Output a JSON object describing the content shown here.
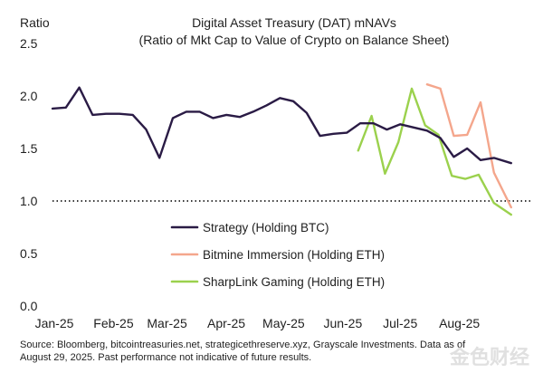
{
  "chart_data": {
    "type": "line",
    "title": "Digital Asset Treasury (DAT) mNAVs",
    "subtitle": "(Ratio of Mkt Cap to Value of Crypto on Balance Sheet)",
    "ylabel": "Ratio",
    "xlabel": "",
    "ylim": [
      0.0,
      2.5
    ],
    "yticks": [
      "0.0",
      "0.5",
      "1.0",
      "1.5",
      "2.0",
      "2.5"
    ],
    "ytick_values": [
      0.0,
      0.5,
      1.0,
      1.5,
      2.0,
      2.5
    ],
    "xlim": [
      "2025-01-01",
      "2025-09-09"
    ],
    "xticks": [
      "Jan-25",
      "Feb-25",
      "Mar-25",
      "Apr-25",
      "May-25",
      "Jun-25",
      "Jul-25",
      "Aug-25"
    ],
    "xtick_dates": [
      "2025-01-01",
      "2025-02-01",
      "2025-03-01",
      "2025-04-01",
      "2025-05-01",
      "2025-06-01",
      "2025-07-01",
      "2025-08-01"
    ],
    "grid": false,
    "reference_line": {
      "y": 1.0,
      "style": "dotted"
    },
    "legend_position": "lower-left inside plot",
    "series": [
      {
        "name": "Strategy (Holding BTC)",
        "color": "#2a1b45",
        "points": [
          [
            "2025-01-01",
            1.88
          ],
          [
            "2025-01-08",
            1.89
          ],
          [
            "2025-01-15",
            2.08
          ],
          [
            "2025-01-22",
            1.82
          ],
          [
            "2025-01-29",
            1.83
          ],
          [
            "2025-02-05",
            1.83
          ],
          [
            "2025-02-12",
            1.82
          ],
          [
            "2025-02-19",
            1.68
          ],
          [
            "2025-02-26",
            1.41
          ],
          [
            "2025-03-05",
            1.79
          ],
          [
            "2025-03-12",
            1.85
          ],
          [
            "2025-03-19",
            1.85
          ],
          [
            "2025-03-26",
            1.79
          ],
          [
            "2025-04-02",
            1.82
          ],
          [
            "2025-04-09",
            1.8
          ],
          [
            "2025-04-16",
            1.85
          ],
          [
            "2025-04-23",
            1.91
          ],
          [
            "2025-04-30",
            1.98
          ],
          [
            "2025-05-07",
            1.95
          ],
          [
            "2025-05-14",
            1.84
          ],
          [
            "2025-05-21",
            1.62
          ],
          [
            "2025-05-28",
            1.64
          ],
          [
            "2025-06-04",
            1.65
          ],
          [
            "2025-06-11",
            1.74
          ],
          [
            "2025-06-18",
            1.74
          ],
          [
            "2025-06-25",
            1.68
          ],
          [
            "2025-07-02",
            1.73
          ],
          [
            "2025-07-09",
            1.7
          ],
          [
            "2025-07-16",
            1.67
          ],
          [
            "2025-07-23",
            1.6
          ],
          [
            "2025-07-30",
            1.42
          ],
          [
            "2025-08-06",
            1.5
          ],
          [
            "2025-08-13",
            1.39
          ],
          [
            "2025-08-20",
            1.41
          ],
          [
            "2025-08-29",
            1.36
          ]
        ]
      },
      {
        "name": "Bitmine Immersion (Holding ETH)",
        "color": "#f4a68c",
        "points": [
          [
            "2025-07-16",
            2.11
          ],
          [
            "2025-07-23",
            2.07
          ],
          [
            "2025-07-30",
            1.62
          ],
          [
            "2025-08-06",
            1.63
          ],
          [
            "2025-08-13",
            1.94
          ],
          [
            "2025-08-20",
            1.27
          ],
          [
            "2025-08-29",
            0.94
          ]
        ]
      },
      {
        "name": "SharpLink Gaming (Holding ETH)",
        "color": "#9bd14d",
        "points": [
          [
            "2025-06-10",
            1.48
          ],
          [
            "2025-06-17",
            1.81
          ],
          [
            "2025-06-24",
            1.26
          ],
          [
            "2025-07-01",
            1.56
          ],
          [
            "2025-07-08",
            2.07
          ],
          [
            "2025-07-15",
            1.72
          ],
          [
            "2025-07-22",
            1.63
          ],
          [
            "2025-07-29",
            1.24
          ],
          [
            "2025-08-05",
            1.21
          ],
          [
            "2025-08-12",
            1.25
          ],
          [
            "2025-08-20",
            0.98
          ],
          [
            "2025-08-29",
            0.87
          ]
        ]
      }
    ]
  },
  "source_lines": [
    "Source: Bloomberg, bitcointreasuries.net, strategicethreserve.xyz, Grayscale Investments. Data as of",
    "August 29, 2025. Past performance not indicative of future results."
  ],
  "watermark": "金色财经"
}
